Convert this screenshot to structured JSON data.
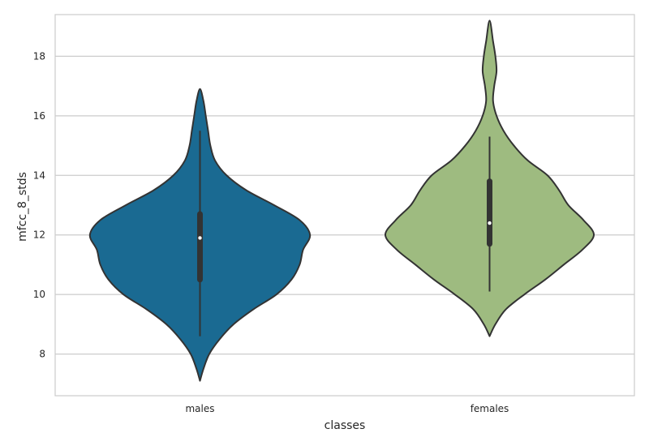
{
  "chart_data": {
    "type": "violin",
    "xlabel": "classes",
    "ylabel": "mfcc_8_stds",
    "categories": [
      "males",
      "females"
    ],
    "ylim": [
      6.6,
      19.4
    ],
    "yticks": [
      8,
      10,
      12,
      14,
      16,
      18
    ],
    "grid": true,
    "violins": [
      {
        "category": "males",
        "color": "#1a6a92",
        "min_extent": 7.1,
        "max_extent": 16.9,
        "whisker_low": 8.6,
        "q1": 10.5,
        "median": 11.9,
        "q3": 12.7,
        "whisker_high": 15.5,
        "density": [
          [
            7.1,
            0.0
          ],
          [
            7.5,
            0.03
          ],
          [
            8.0,
            0.08
          ],
          [
            8.5,
            0.17
          ],
          [
            9.0,
            0.29
          ],
          [
            9.5,
            0.46
          ],
          [
            10.0,
            0.66
          ],
          [
            10.5,
            0.79
          ],
          [
            11.0,
            0.86
          ],
          [
            11.5,
            0.89
          ],
          [
            12.0,
            0.95
          ],
          [
            12.5,
            0.86
          ],
          [
            13.0,
            0.64
          ],
          [
            13.5,
            0.4
          ],
          [
            14.0,
            0.23
          ],
          [
            14.5,
            0.13
          ],
          [
            15.0,
            0.09
          ],
          [
            15.5,
            0.07
          ],
          [
            16.0,
            0.05
          ],
          [
            16.5,
            0.03
          ],
          [
            16.9,
            0.0
          ]
        ]
      },
      {
        "category": "females",
        "color": "#9ebb80",
        "min_extent": 8.6,
        "max_extent": 19.2,
        "whisker_low": 10.1,
        "q1": 11.7,
        "median": 12.4,
        "q3": 13.8,
        "whisker_high": 15.3,
        "density": [
          [
            8.6,
            0.0
          ],
          [
            9.0,
            0.05
          ],
          [
            9.5,
            0.14
          ],
          [
            10.0,
            0.3
          ],
          [
            10.5,
            0.48
          ],
          [
            11.0,
            0.64
          ],
          [
            11.5,
            0.8
          ],
          [
            12.0,
            0.9
          ],
          [
            12.5,
            0.81
          ],
          [
            13.0,
            0.68
          ],
          [
            13.5,
            0.6
          ],
          [
            14.0,
            0.5
          ],
          [
            14.5,
            0.33
          ],
          [
            15.0,
            0.21
          ],
          [
            15.5,
            0.12
          ],
          [
            16.0,
            0.06
          ],
          [
            16.5,
            0.03
          ],
          [
            17.0,
            0.04
          ],
          [
            17.5,
            0.06
          ],
          [
            18.0,
            0.05
          ],
          [
            18.5,
            0.03
          ],
          [
            19.2,
            0.0
          ]
        ]
      }
    ]
  }
}
